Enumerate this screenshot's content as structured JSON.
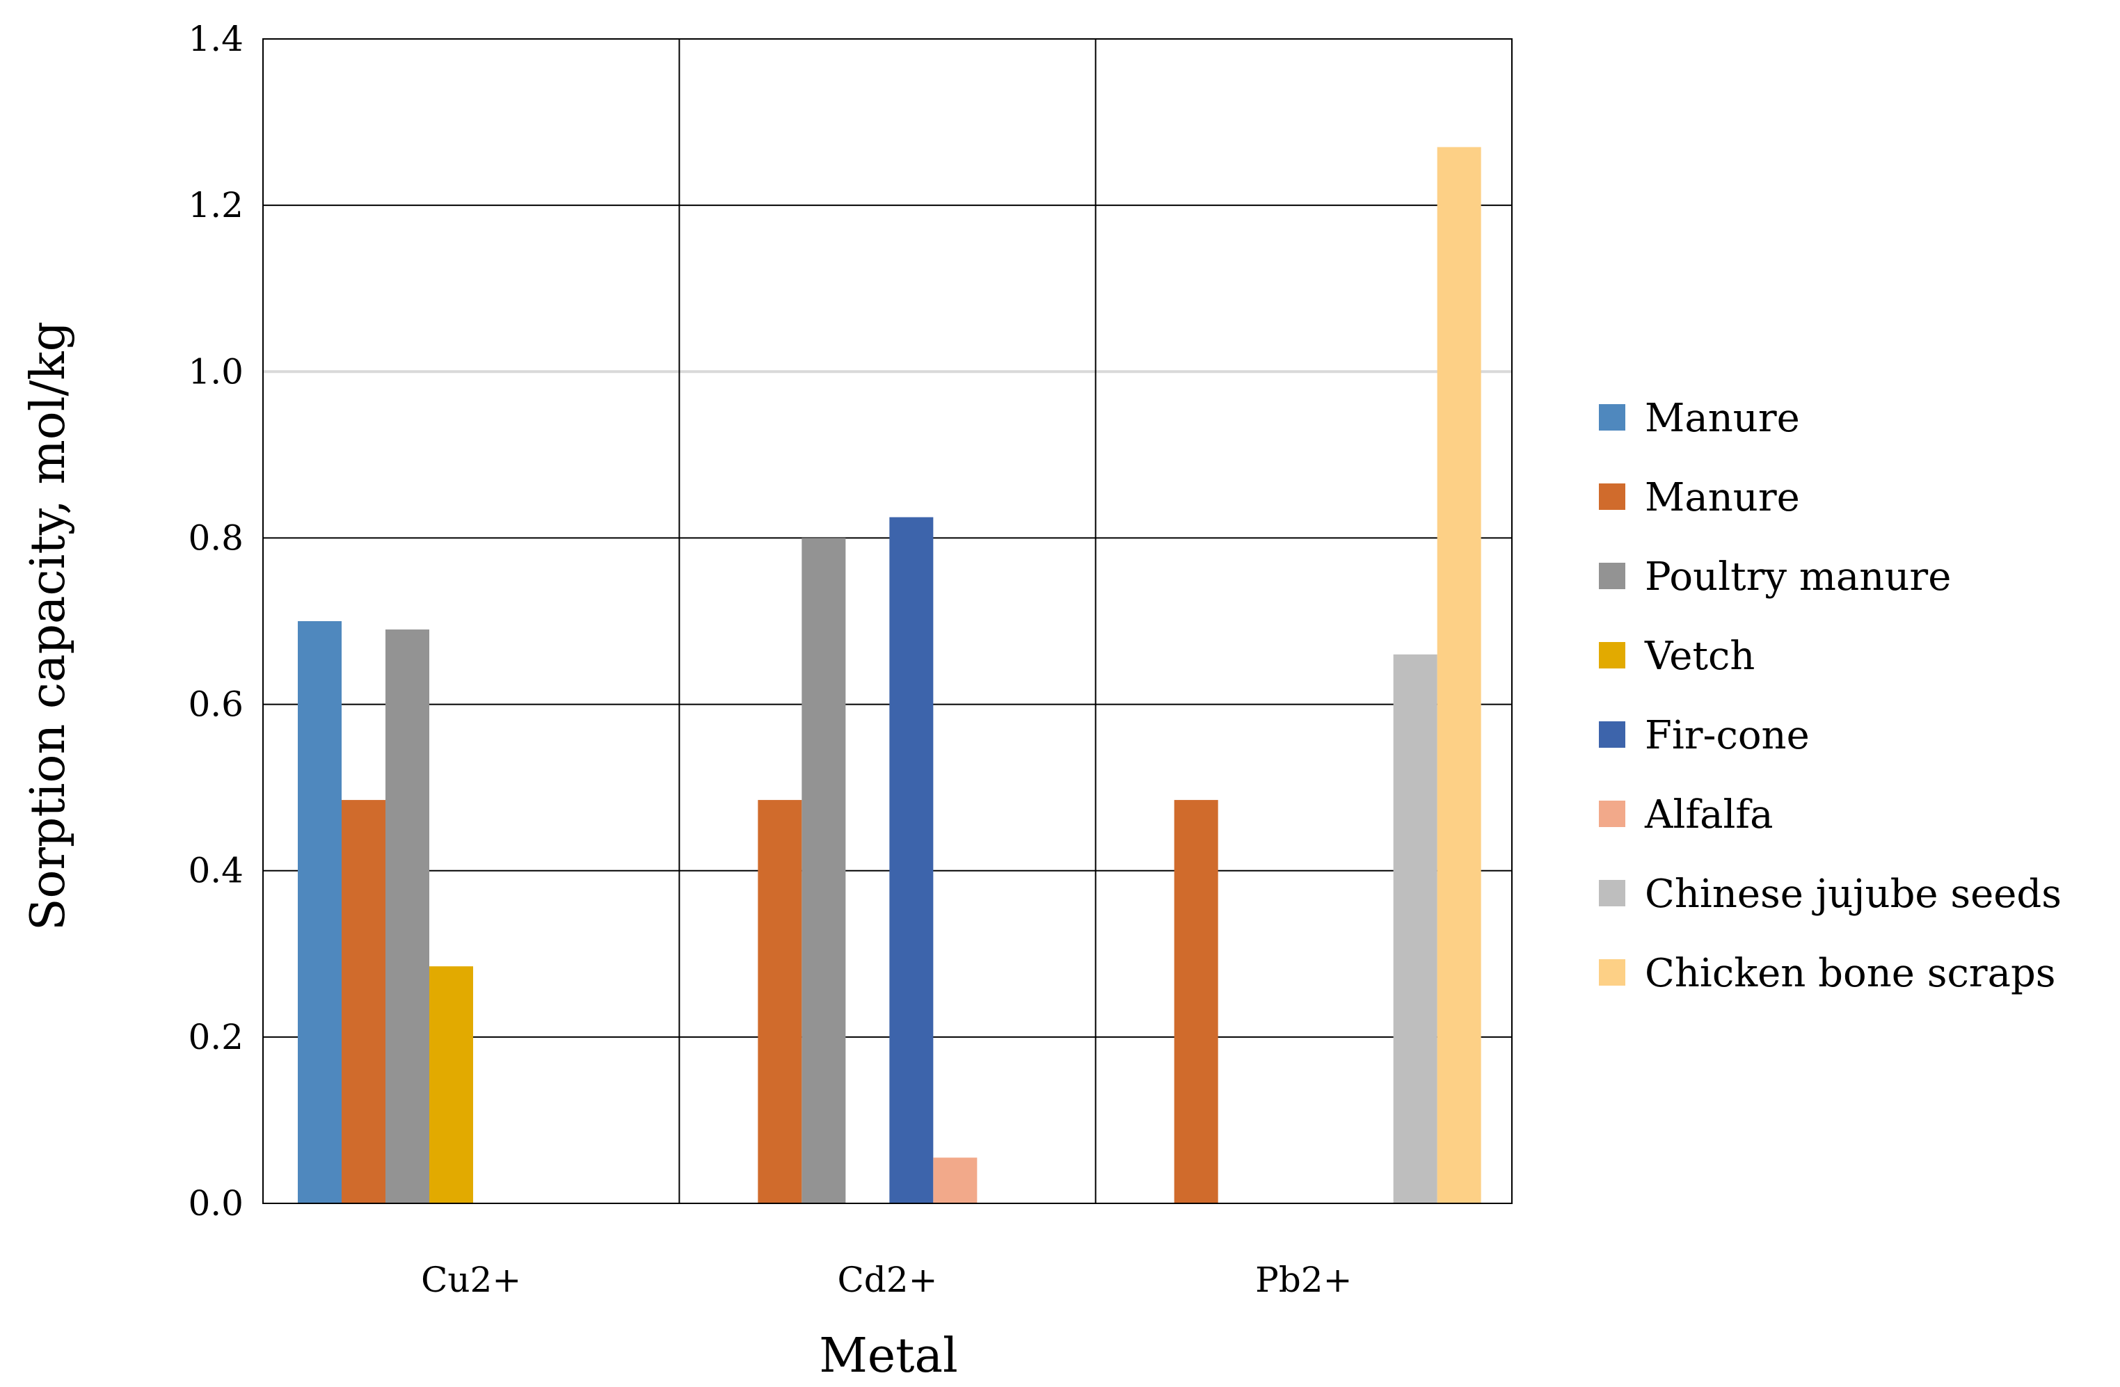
{
  "chart_data": {
    "type": "bar",
    "title": "",
    "xlabel": "Metal",
    "ylabel": "Sorption capacity, mol/kg",
    "categories": [
      "Cu2+",
      "Cd2+",
      "Pb2+"
    ],
    "ylim": [
      0,
      1.4
    ],
    "yticks": [
      "0.0",
      "0.2",
      "0.4",
      "0.6",
      "0.8",
      "1.0",
      "1.2",
      "1.4"
    ],
    "grid": true,
    "legend_position": "right",
    "series": [
      {
        "name": "Manure",
        "color": "#4F88BE",
        "values": [
          0.7,
          null,
          null
        ]
      },
      {
        "name": "Manure",
        "color": "#D06B2C",
        "values": [
          0.485,
          0.485,
          0.485
        ]
      },
      {
        "name": "Poultry manure",
        "color": "#939393",
        "values": [
          0.69,
          0.8,
          null
        ]
      },
      {
        "name": "Vetch",
        "color": "#E2AA00",
        "values": [
          0.285,
          null,
          null
        ]
      },
      {
        "name": "Fir-cone",
        "color": "#3D64AB",
        "values": [
          null,
          0.825,
          null
        ]
      },
      {
        "name": "Alfalfa",
        "color": "#F2A98A",
        "values": [
          null,
          0.055,
          null
        ]
      },
      {
        "name": "Chinese jujube seeds",
        "color": "#BEBEBE",
        "values": [
          null,
          null,
          0.66
        ]
      },
      {
        "name": "Chicken bone scraps",
        "color": "#FDD086",
        "values": [
          null,
          null,
          1.27
        ]
      }
    ]
  }
}
